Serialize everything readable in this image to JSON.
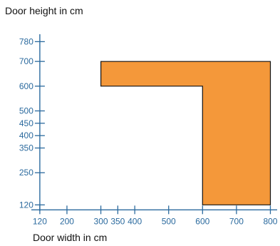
{
  "chart_data": {
    "type": "area",
    "ylabel": "Door height in cm",
    "xlabel": "Door width in cm",
    "x_ticks": [
      120,
      200,
      300,
      350,
      400,
      500,
      600,
      700,
      800
    ],
    "y_ticks": [
      120,
      250,
      350,
      400,
      450,
      500,
      600,
      700,
      780
    ],
    "xlim": [
      95,
      820
    ],
    "ylim": [
      95,
      810
    ],
    "region": {
      "points": [
        [
          300,
          700
        ],
        [
          800,
          700
        ],
        [
          800,
          120
        ],
        [
          600,
          120
        ],
        [
          600,
          600
        ],
        [
          300,
          600
        ]
      ],
      "fill": "#f4983a",
      "stroke": "#111111"
    },
    "colors": {
      "axis": "#2b6a9e",
      "tick_label": "#2b6a9e",
      "title": "#111111"
    }
  }
}
